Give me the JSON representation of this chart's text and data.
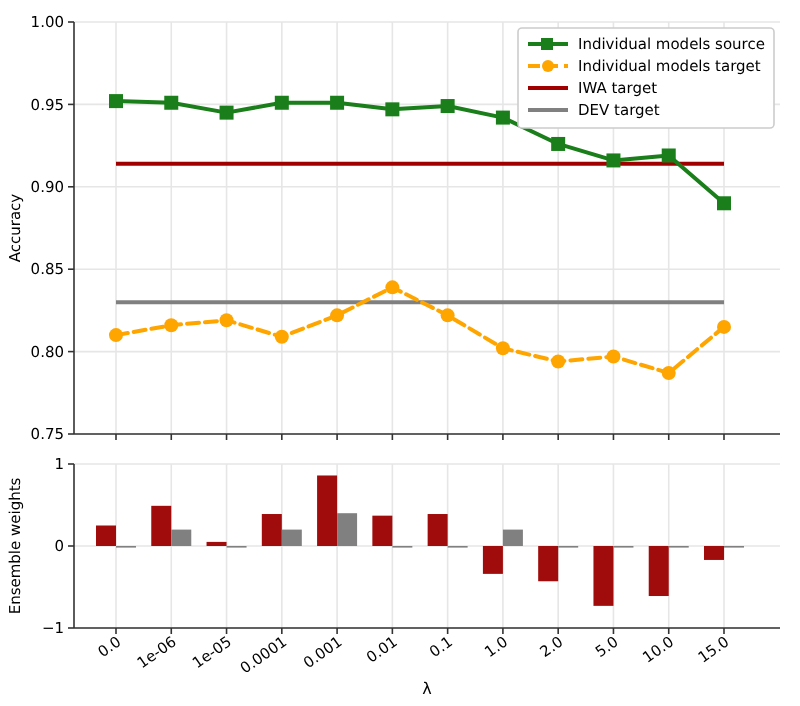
{
  "chart_data": [
    {
      "type": "line",
      "ylabel": "Accuracy",
      "categories": [
        "0.0",
        "1e-06",
        "1e-05",
        "0.0001",
        "0.001",
        "0.01",
        "0.1",
        "1.0",
        "2.0",
        "5.0",
        "10.0",
        "15.0"
      ],
      "ylim": [
        0.75,
        1.0
      ],
      "yticks": [
        {
          "value": 0.75,
          "label": "0.75"
        },
        {
          "value": 0.8,
          "label": "0.80"
        },
        {
          "value": 0.85,
          "label": "0.85"
        },
        {
          "value": 0.9,
          "label": "0.90"
        },
        {
          "value": 0.95,
          "label": "0.95"
        },
        {
          "value": 1.0,
          "label": "1.00"
        }
      ],
      "grid": true,
      "legend": "top right",
      "tick_labels": "y",
      "series": [
        {
          "name": "Individual models source",
          "color": "#1a7f1a",
          "marker": "square",
          "line_style": "solid",
          "values": [
            0.952,
            0.951,
            0.945,
            0.951,
            0.951,
            0.947,
            0.949,
            0.942,
            0.926,
            0.916,
            0.919,
            0.89
          ]
        },
        {
          "name": "Individual models target",
          "color": "#ffa500",
          "marker": "circle",
          "line_style": "dashed",
          "values": [
            0.81,
            0.816,
            0.819,
            0.809,
            0.822,
            0.839,
            0.822,
            0.802,
            0.794,
            0.797,
            0.787,
            0.815
          ]
        }
      ],
      "ref_lines": [
        {
          "axis": "y",
          "value": 0.914,
          "label": "IWA target",
          "color": "#a00000",
          "line_style": "solid"
        },
        {
          "axis": "y",
          "value": 0.83,
          "label": "DEV target",
          "color": "#808080",
          "line_style": "solid"
        }
      ]
    },
    {
      "type": "bar",
      "ylabel": "Ensemble weights",
      "xlabel": "λ",
      "categories": [
        "0.0",
        "1e-06",
        "1e-05",
        "0.0001",
        "0.001",
        "0.01",
        "0.1",
        "1.0",
        "2.0",
        "5.0",
        "10.0",
        "15.0"
      ],
      "ylim": [
        -1,
        1
      ],
      "yticks": [
        {
          "value": -1,
          "label": "−1"
        },
        0,
        1
      ],
      "grid": true,
      "series": [
        {
          "color": "#a00c0c",
          "values": [
            0.25,
            0.49,
            0.05,
            0.39,
            0.86,
            0.37,
            0.39,
            -0.34,
            -0.43,
            -0.73,
            -0.61,
            -0.17
          ]
        },
        {
          "color": "#808080",
          "values": [
            0,
            0.2,
            0,
            0.2,
            0.4,
            0,
            0,
            0.2,
            0,
            0,
            0,
            0
          ]
        }
      ]
    }
  ]
}
